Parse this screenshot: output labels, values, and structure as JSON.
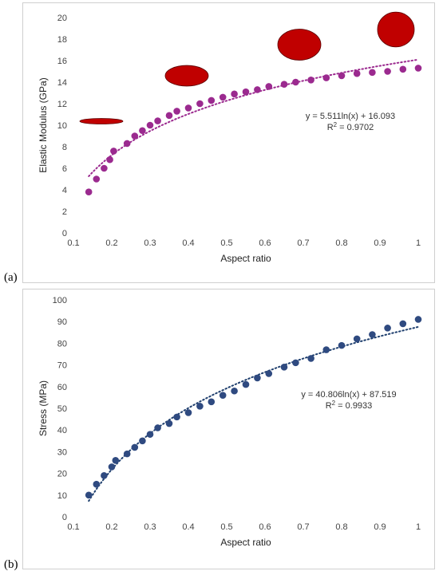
{
  "panel_labels": [
    "(a)",
    "(b)"
  ],
  "chart_data": [
    {
      "type": "scatter",
      "title": "",
      "xlabel": "Aspect ratio",
      "ylabel": "Elastic Modulus (GPa)",
      "xlim": [
        0.1,
        1
      ],
      "ylim": [
        0,
        20
      ],
      "x_ticks": [
        "0.1",
        "0.2",
        "0.3",
        "0.4",
        "0.5",
        "0.6",
        "0.7",
        "0.8",
        "0.9",
        "1"
      ],
      "y_ticks": [
        "0",
        "2",
        "4",
        "6",
        "8",
        "10",
        "12",
        "14",
        "16",
        "18",
        "20"
      ],
      "grid": false,
      "marker_color": "#9b2a8f",
      "trendline": {
        "type": "logarithmic",
        "a": 5.511,
        "b": 16.093,
        "color": "#9b2a8f",
        "style": "dotted"
      },
      "equation": "y = 5.511ln(x) + 16.093",
      "r2_label": "R",
      "r2_value": " = 0.9702",
      "ellipse_color": "#c00000",
      "ellipses": [
        {
          "aspect": 0.13
        },
        {
          "aspect": 0.48
        },
        {
          "aspect": 0.72
        },
        {
          "aspect": 0.95
        }
      ],
      "points": [
        [
          0.14,
          3.8
        ],
        [
          0.16,
          5.0
        ],
        [
          0.18,
          6.0
        ],
        [
          0.195,
          6.8
        ],
        [
          0.205,
          7.6
        ],
        [
          0.24,
          8.3
        ],
        [
          0.26,
          9.0
        ],
        [
          0.28,
          9.5
        ],
        [
          0.3,
          10.0
        ],
        [
          0.32,
          10.4
        ],
        [
          0.35,
          10.9
        ],
        [
          0.37,
          11.3
        ],
        [
          0.4,
          11.6
        ],
        [
          0.43,
          12.0
        ],
        [
          0.46,
          12.3
        ],
        [
          0.49,
          12.6
        ],
        [
          0.52,
          12.9
        ],
        [
          0.55,
          13.1
        ],
        [
          0.58,
          13.3
        ],
        [
          0.61,
          13.6
        ],
        [
          0.65,
          13.8
        ],
        [
          0.68,
          14.0
        ],
        [
          0.72,
          14.2
        ],
        [
          0.76,
          14.4
        ],
        [
          0.8,
          14.6
        ],
        [
          0.84,
          14.8
        ],
        [
          0.88,
          14.9
        ],
        [
          0.92,
          15.0
        ],
        [
          0.96,
          15.2
        ],
        [
          1.0,
          15.3
        ]
      ]
    },
    {
      "type": "scatter",
      "title": "",
      "xlabel": "Aspect ratio",
      "ylabel": "Stress (MPa)",
      "xlim": [
        0.1,
        1
      ],
      "ylim": [
        0,
        100
      ],
      "x_ticks": [
        "0.1",
        "0.2",
        "0.3",
        "0.4",
        "0.5",
        "0.6",
        "0.7",
        "0.8",
        "0.9",
        "1"
      ],
      "y_ticks": [
        "0",
        "10",
        "20",
        "30",
        "40",
        "50",
        "60",
        "70",
        "80",
        "90",
        "100"
      ],
      "grid": false,
      "marker_color": "#2f4a80",
      "trendline": {
        "type": "logarithmic",
        "a": 40.806,
        "b": 87.519,
        "color": "#1f3f6e",
        "style": "dotted"
      },
      "equation": "y = 40.806ln(x) + 87.519",
      "r2_label": "R",
      "r2_value": " = 0.9933",
      "points": [
        [
          0.14,
          10
        ],
        [
          0.16,
          15
        ],
        [
          0.18,
          19
        ],
        [
          0.2,
          23
        ],
        [
          0.21,
          26
        ],
        [
          0.24,
          29
        ],
        [
          0.26,
          32
        ],
        [
          0.28,
          35
        ],
        [
          0.3,
          38
        ],
        [
          0.32,
          41
        ],
        [
          0.35,
          43
        ],
        [
          0.37,
          46
        ],
        [
          0.4,
          48
        ],
        [
          0.43,
          51
        ],
        [
          0.46,
          53
        ],
        [
          0.49,
          56
        ],
        [
          0.52,
          58
        ],
        [
          0.55,
          61
        ],
        [
          0.58,
          64
        ],
        [
          0.61,
          66
        ],
        [
          0.65,
          69
        ],
        [
          0.68,
          71
        ],
        [
          0.72,
          73
        ],
        [
          0.76,
          77
        ],
        [
          0.8,
          79
        ],
        [
          0.84,
          82
        ],
        [
          0.88,
          84
        ],
        [
          0.92,
          87
        ],
        [
          0.96,
          89
        ],
        [
          1.0,
          91
        ]
      ]
    }
  ]
}
